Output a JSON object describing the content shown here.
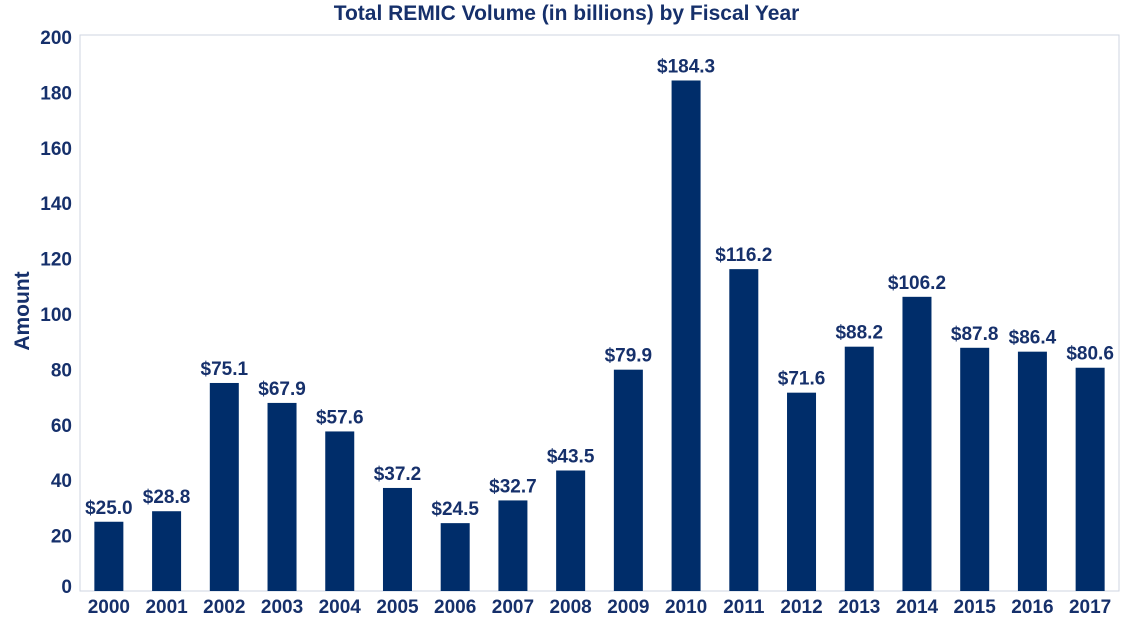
{
  "chart_data": {
    "type": "bar",
    "title": "Total REMIC Volume (in billions) by Fiscal Year",
    "xlabel": "",
    "ylabel": "Amount",
    "categories": [
      "2000",
      "2001",
      "2002",
      "2003",
      "2004",
      "2005",
      "2006",
      "2007",
      "2008",
      "2009",
      "2010",
      "2011",
      "2012",
      "2013",
      "2014",
      "2015",
      "2016",
      "2017"
    ],
    "values": [
      25.0,
      28.8,
      75.1,
      67.9,
      57.6,
      37.2,
      24.5,
      32.7,
      43.5,
      79.9,
      184.3,
      116.2,
      71.6,
      88.2,
      106.2,
      87.8,
      86.4,
      80.6
    ],
    "data_labels": [
      "$25.0",
      "$28.8",
      "$75.1",
      "$67.9",
      "$57.6",
      "$37.2",
      "$24.5",
      "$32.7",
      "$43.5",
      "$79.9",
      "$184.3",
      "$116.2",
      "$71.6",
      "$88.2",
      "$106.2",
      "$87.8",
      "$86.4",
      "$80.6"
    ],
    "yticks": [
      0,
      20,
      40,
      60,
      80,
      100,
      120,
      140,
      160,
      180,
      200
    ],
    "ylim": [
      0,
      200
    ],
    "grid": false,
    "legend": "none",
    "bar_color": "#002d6a",
    "text_color": "#16306b",
    "frame_color": "#cfd6e2"
  }
}
